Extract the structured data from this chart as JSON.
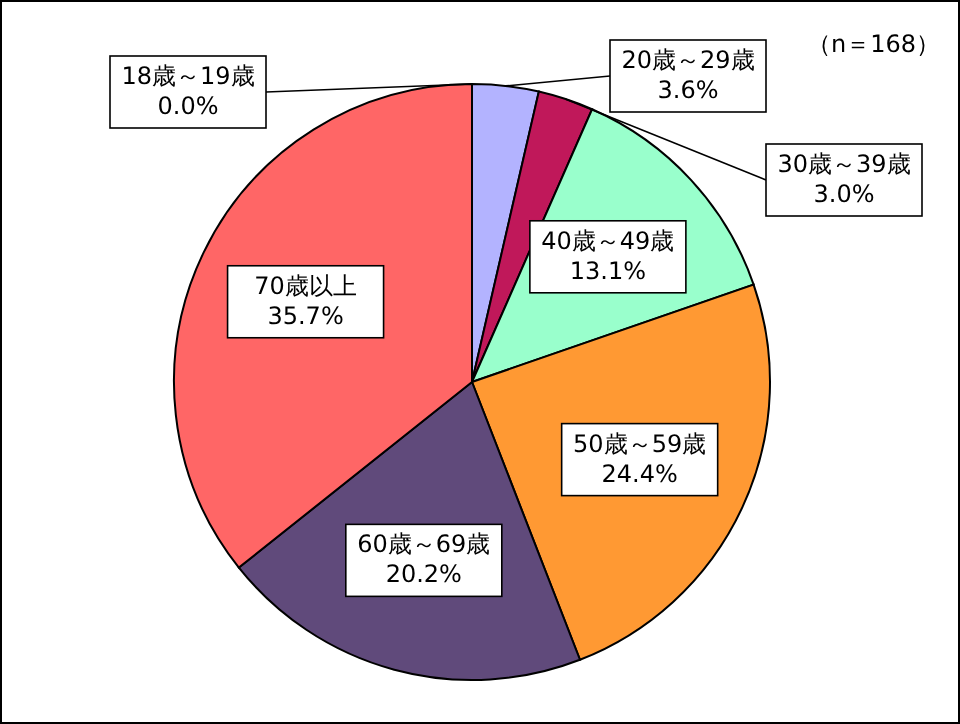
{
  "chart_data": {
    "type": "pie",
    "categories": [
      "18歳～19歳",
      "20歳～29歳",
      "30歳～39歳",
      "40歳～49歳",
      "50歳～59歳",
      "60歳～69歳",
      "70歳以上"
    ],
    "values": [
      0.0,
      3.6,
      3.0,
      13.1,
      24.4,
      20.2,
      35.7
    ],
    "value_labels": [
      "0.0%",
      "3.6%",
      "3.0%",
      "13.1%",
      "24.4%",
      "20.2%",
      "35.7%"
    ],
    "colors": [
      null,
      "#b3b3ff",
      "#c0185a",
      "#99ffcc",
      "#ff9933",
      "#604a7b",
      "#ff6666"
    ],
    "annotations": [
      "（n＝168）"
    ]
  }
}
